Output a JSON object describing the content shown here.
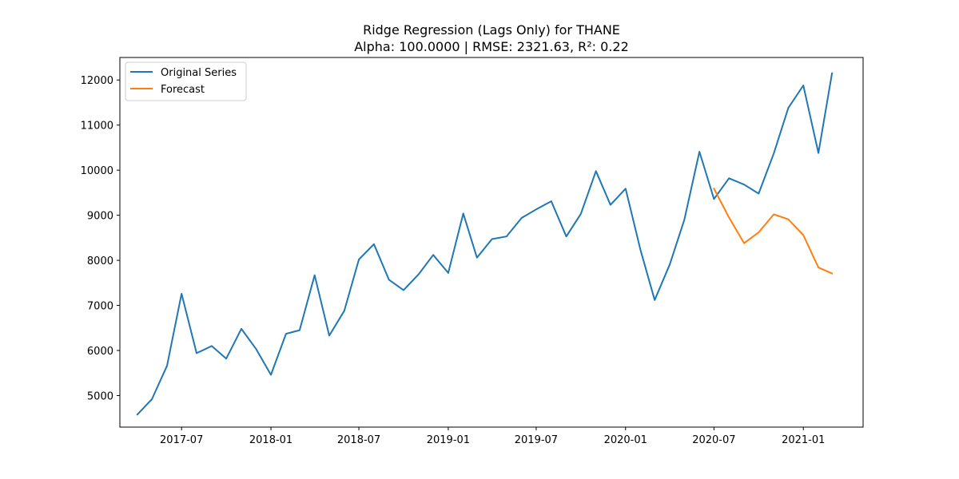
{
  "chart_data": {
    "type": "line",
    "title": "Ridge Regression (Lags Only) for THANE",
    "subtitle": "Alpha: 100.0000 | RMSE: 2321.63, R²: 0.22",
    "xlabel": "",
    "ylabel": "",
    "x_ticks": [
      "2017-07",
      "2018-01",
      "2018-07",
      "2019-01",
      "2019-07",
      "2020-01",
      "2020-07",
      "2021-01"
    ],
    "y_ticks": [
      5000,
      6000,
      7000,
      8000,
      9000,
      10000,
      11000,
      12000
    ],
    "xlim": [
      "2017-02-24",
      "2021-05-04"
    ],
    "ylim": [
      4300,
      12500
    ],
    "grid": false,
    "legend_position": "top-left",
    "series": [
      {
        "name": "Original Series",
        "color": "#1f77b4",
        "x": [
          "2017-04-01",
          "2017-05-01",
          "2017-06-01",
          "2017-07-01",
          "2017-08-01",
          "2017-09-01",
          "2017-10-01",
          "2017-11-01",
          "2017-12-01",
          "2018-01-01",
          "2018-02-01",
          "2018-03-01",
          "2018-04-01",
          "2018-05-01",
          "2018-06-01",
          "2018-07-01",
          "2018-08-01",
          "2018-09-01",
          "2018-10-01",
          "2018-11-01",
          "2018-12-01",
          "2019-01-01",
          "2019-02-01",
          "2019-03-01",
          "2019-04-01",
          "2019-05-01",
          "2019-06-01",
          "2019-07-01",
          "2019-08-01",
          "2019-09-01",
          "2019-10-01",
          "2019-11-01",
          "2019-12-01",
          "2020-01-01",
          "2020-02-01",
          "2020-03-01",
          "2020-04-01",
          "2020-05-01",
          "2020-06-01",
          "2020-07-01",
          "2020-08-01",
          "2020-09-01",
          "2020-10-01",
          "2020-11-01",
          "2020-12-01",
          "2021-01-01",
          "2021-02-01",
          "2021-03-01"
        ],
        "y": [
          4580,
          4920,
          5660,
          7260,
          5940,
          6100,
          5820,
          6480,
          6040,
          5460,
          6370,
          6450,
          7670,
          6330,
          6880,
          8020,
          8360,
          7570,
          7340,
          7690,
          8120,
          7720,
          9040,
          8060,
          8470,
          8530,
          8940,
          9130,
          9310,
          8530,
          9030,
          9980,
          9230,
          9590,
          8220,
          7120,
          7910,
          8900,
          10410,
          9360,
          9820,
          9680,
          9480,
          10370,
          11380,
          11880,
          10380,
          12150
        ]
      },
      {
        "name": "Forecast",
        "color": "#ff7f0e",
        "x": [
          "2020-07-01",
          "2020-08-01",
          "2020-09-01",
          "2020-10-01",
          "2020-11-01",
          "2020-12-01",
          "2021-01-01",
          "2021-02-01",
          "2021-03-01"
        ],
        "y": [
          9590,
          8950,
          8380,
          8620,
          9020,
          8910,
          8560,
          7840,
          7710
        ]
      }
    ]
  }
}
